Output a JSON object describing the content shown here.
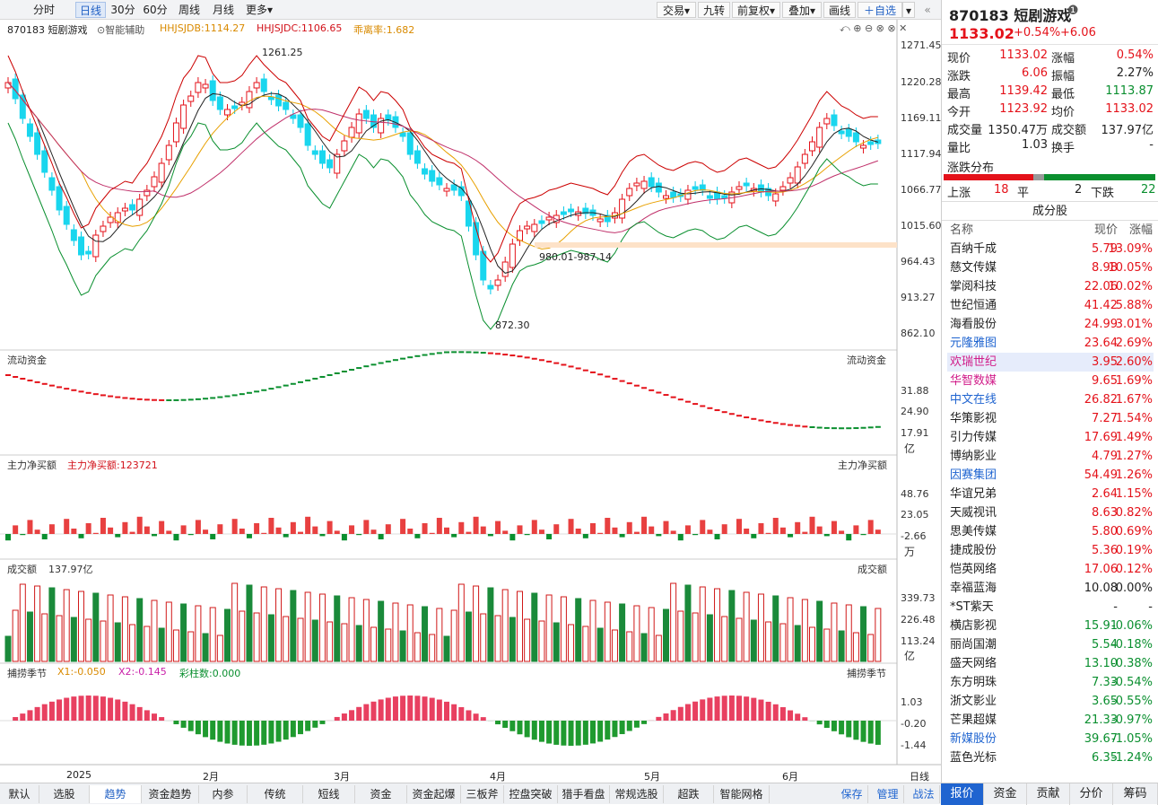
{
  "toolbar": {
    "left": [
      "分时",
      "日线",
      "30分",
      "60分",
      "周线",
      "月线",
      "更多"
    ],
    "right": [
      "交易",
      "九转",
      "前复权",
      "叠加",
      "画线",
      "自选"
    ]
  },
  "main_header": {
    "name": "870183 短剧游戏",
    "assist": "智能辅助",
    "hhjsjdb": "HHJSJDB:1114.27",
    "hhjsjdc": "HHJSJDC:1106.65",
    "ratio": "乖离率:1.682"
  },
  "price_axis": [
    "1271.45",
    "1220.28",
    "1169.11",
    "1117.94",
    "1066.77",
    "1015.60",
    "964.43",
    "913.27",
    "862.10"
  ],
  "annotations": {
    "high": "1261.25",
    "low": "872.30",
    "range": "980.01-987.14"
  },
  "panels": {
    "flow": {
      "title": "流动资金",
      "axis": [
        "31.88",
        "24.90",
        "17.91",
        "亿"
      ]
    },
    "mainbuy": {
      "title": "主力净买额",
      "value": "主力净买额:123721",
      "axis": [
        "48.76",
        "23.05",
        "-2.66",
        "万"
      ]
    },
    "turnover": {
      "title": "成交额",
      "value": "137.97亿",
      "axis": [
        "339.73",
        "226.48",
        "113.24",
        "亿"
      ]
    },
    "season": {
      "title": "捕捞季节",
      "x1": "X1:-0.050",
      "x2": "X2:-0.145",
      "cnt": "彩柱数:0.000",
      "axis": [
        "1.03",
        "-0.20",
        "-1.44"
      ]
    }
  },
  "dates": [
    "2025",
    "2月",
    "3月",
    "4月",
    "5月",
    "6月"
  ],
  "period_label": "日线",
  "bottom_tabs": [
    "默认",
    "选股",
    "趋势",
    "资金趋势",
    "内参",
    "传统",
    "短线",
    "资金",
    "资金起爆",
    "三板斧",
    "控盘突破",
    "猎手看盘",
    "常规选股",
    "超跌",
    "智能网格"
  ],
  "bottom_right": [
    "保存",
    "管理",
    "战法"
  ],
  "quote": {
    "title": "870183 短剧游戏",
    "price": "1133.02",
    "chg_pct": "+0.54%",
    "chg": "+6.06",
    "grid": [
      [
        "现价",
        "1133.02",
        "涨幅",
        "0.54%"
      ],
      [
        "涨跌",
        "6.06",
        "振幅",
        "2.27%"
      ],
      [
        "最高",
        "1139.42",
        "最低",
        "1113.87"
      ],
      [
        "今开",
        "1123.92",
        "均价",
        "1133.02"
      ],
      [
        "成交量",
        "1350.47万",
        "成交额",
        "137.97亿"
      ],
      [
        "量比",
        "1.03",
        "换手",
        "-"
      ]
    ],
    "dist_title": "涨跌分布",
    "up_label": "上涨",
    "up": "18",
    "flat_label": "平",
    "flat": "2",
    "down_label": "下跌",
    "down": "22",
    "cons_title": "成分股",
    "cols": [
      "名称",
      "现价",
      "涨幅"
    ],
    "stocks": [
      [
        "百纳千成",
        "5.79",
        "13.09%"
      ],
      [
        "慈文传媒",
        "8.98",
        "10.05%"
      ],
      [
        "掌阅科技",
        "22.06",
        "10.02%"
      ],
      [
        "世纪恒通",
        "41.42",
        "5.88%"
      ],
      [
        "海看股份",
        "24.99",
        "3.01%"
      ],
      [
        "元隆雅图",
        "23.64",
        "2.69%"
      ],
      [
        "欢瑞世纪",
        "3.95",
        "2.60%"
      ],
      [
        "华智数媒",
        "9.65",
        "1.69%"
      ],
      [
        "中文在线",
        "26.82",
        "1.67%"
      ],
      [
        "华策影视",
        "7.27",
        "1.54%"
      ],
      [
        "引力传媒",
        "17.69",
        "1.49%"
      ],
      [
        "博纳影业",
        "4.79",
        "1.27%"
      ],
      [
        "因赛集团",
        "54.49",
        "1.26%"
      ],
      [
        "华谊兄弟",
        "2.64",
        "1.15%"
      ],
      [
        "天威视讯",
        "8.63",
        "0.82%"
      ],
      [
        "思美传媒",
        "5.80",
        "0.69%"
      ],
      [
        "捷成股份",
        "5.36",
        "0.19%"
      ],
      [
        "恺英网络",
        "17.06",
        "0.12%"
      ],
      [
        "幸福蓝海",
        "10.08",
        "0.00%"
      ],
      [
        "*ST紫天",
        "-",
        "-"
      ],
      [
        "横店影视",
        "15.91",
        "-0.06%"
      ],
      [
        "丽尚国潮",
        "5.54",
        "-0.18%"
      ],
      [
        "盛天网络",
        "13.10",
        "-0.38%"
      ],
      [
        "东方明珠",
        "7.33",
        "-0.54%"
      ],
      [
        "浙文影业",
        "3.65",
        "-0.55%"
      ],
      [
        "芒果超媒",
        "21.33",
        "-0.97%"
      ],
      [
        "新媒股份",
        "39.67",
        "-1.05%"
      ],
      [
        "蓝色光标",
        "6.35",
        "-1.24%"
      ]
    ],
    "tabs": [
      "报价",
      "资金",
      "贡献",
      "分价",
      "筹码"
    ]
  }
}
